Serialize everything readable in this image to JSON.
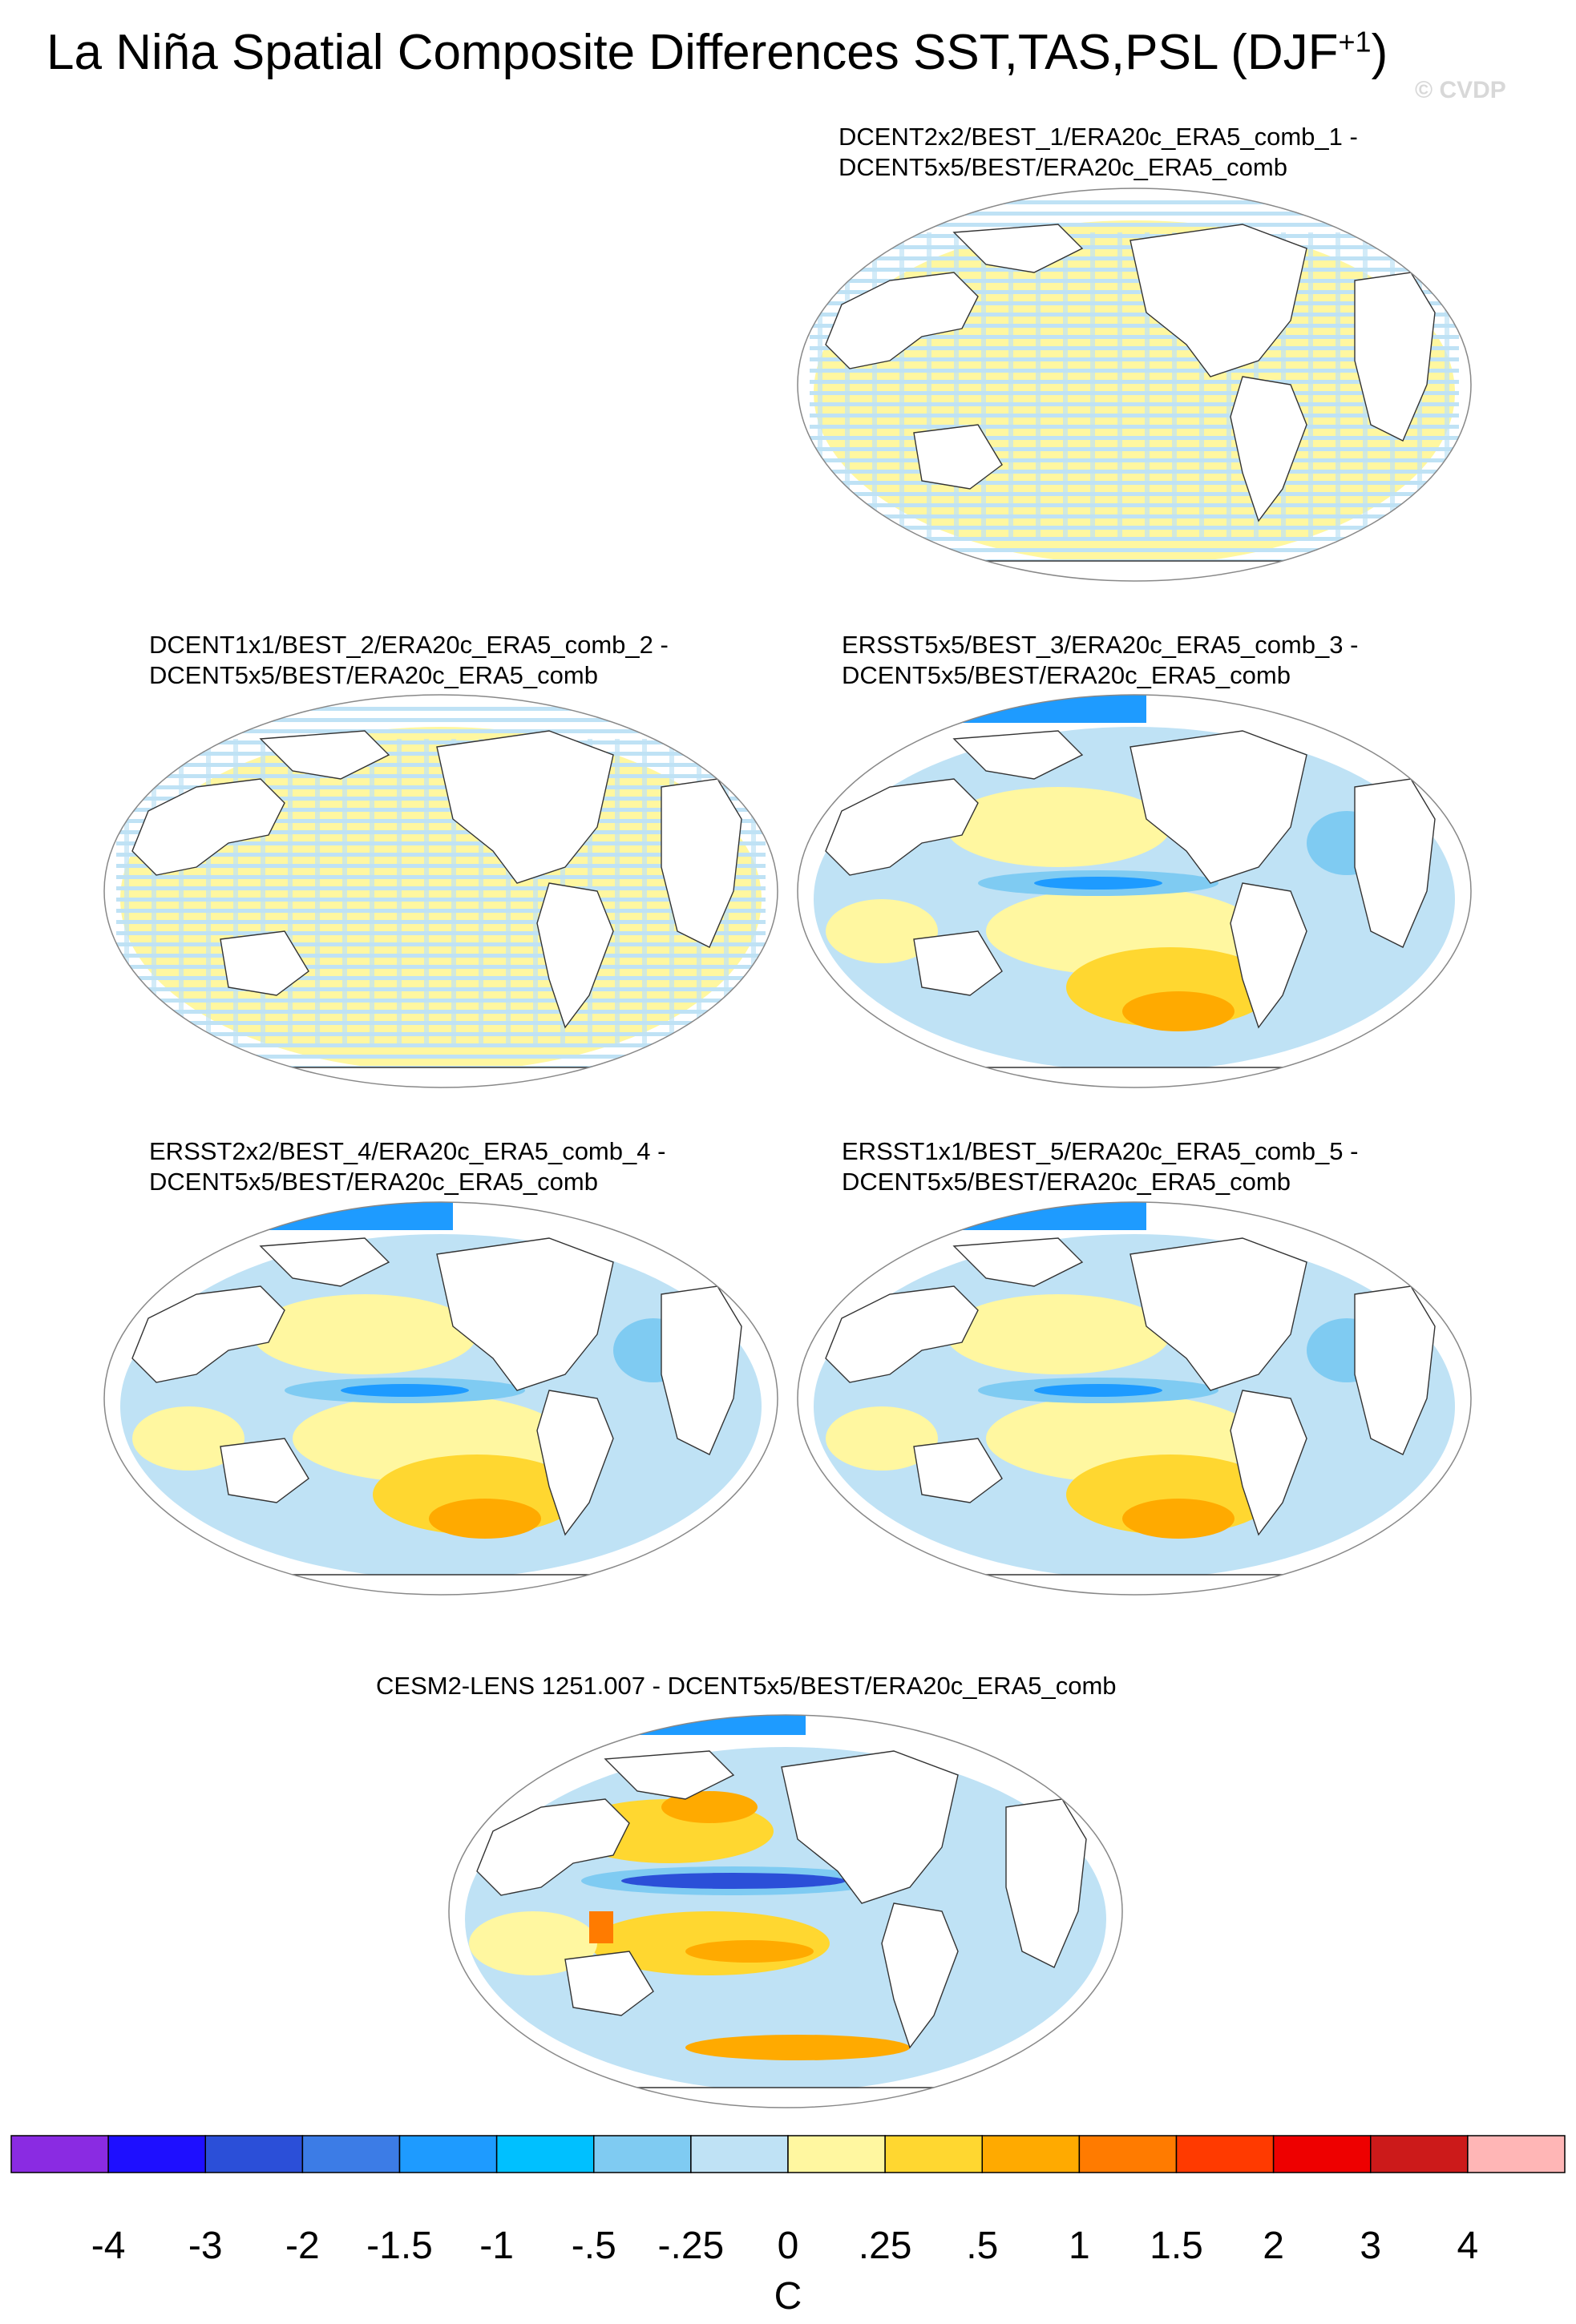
{
  "title": "La Niña Spatial Composite Differences SST,TAS,PSL (DJF",
  "title_superscript": "+1",
  "title_close": ")",
  "watermark": "© CVDP",
  "panels": [
    {
      "id": "p1",
      "line1": "DCENT2x2/BEST_1/ERA20c_ERA5_comb_1 -",
      "line2": "DCENT5x5/BEST/ERA20c_ERA5_comb",
      "pattern": "stripes"
    },
    {
      "id": "p2",
      "line1": "DCENT1x1/BEST_2/ERA20c_ERA5_comb_2 -",
      "line2": "DCENT5x5/BEST/ERA20c_ERA5_comb",
      "pattern": "stripes"
    },
    {
      "id": "p3",
      "line1": "ERSST5x5/BEST_3/ERA20c_ERA5_comb_3 -",
      "line2": "DCENT5x5/BEST/ERA20c_ERA5_comb",
      "pattern": "field"
    },
    {
      "id": "p4",
      "line1": "ERSST2x2/BEST_4/ERA20c_ERA5_comb_4 -",
      "line2": "DCENT5x5/BEST/ERA20c_ERA5_comb",
      "pattern": "field"
    },
    {
      "id": "p5",
      "line1": "ERSST1x1/BEST_5/ERA20c_ERA5_comb_5 -",
      "line2": "DCENT5x5/BEST/ERA20c_ERA5_comb",
      "pattern": "field"
    },
    {
      "id": "p6",
      "line1": "CESM2-LENS 1251.007 - DCENT5x5/BEST/ERA20c_ERA5_comb",
      "line2": "",
      "pattern": "model"
    }
  ],
  "chart_data": {
    "type": "heatmap",
    "projection": "Robinson (Pacific-centered)",
    "colorbar": {
      "units": "C",
      "levels": [
        "-4",
        "-3",
        "-2",
        "-1.5",
        "-1",
        "-.5",
        "-.25",
        "0",
        ".25",
        ".5",
        "1",
        "1.5",
        "2",
        "3",
        "4"
      ],
      "colors": [
        "#8A2BE2",
        "#1E0FFF",
        "#2B4FD8",
        "#3C7CE6",
        "#1E9BFF",
        "#00C0FF",
        "#7FCBF2",
        "#BFE2F5",
        "#FFF7A0",
        "#FFD730",
        "#FFAA00",
        "#FF7B00",
        "#FF3A00",
        "#EE0000",
        "#CC1A1A",
        "#FFB6B6"
      ]
    }
  }
}
